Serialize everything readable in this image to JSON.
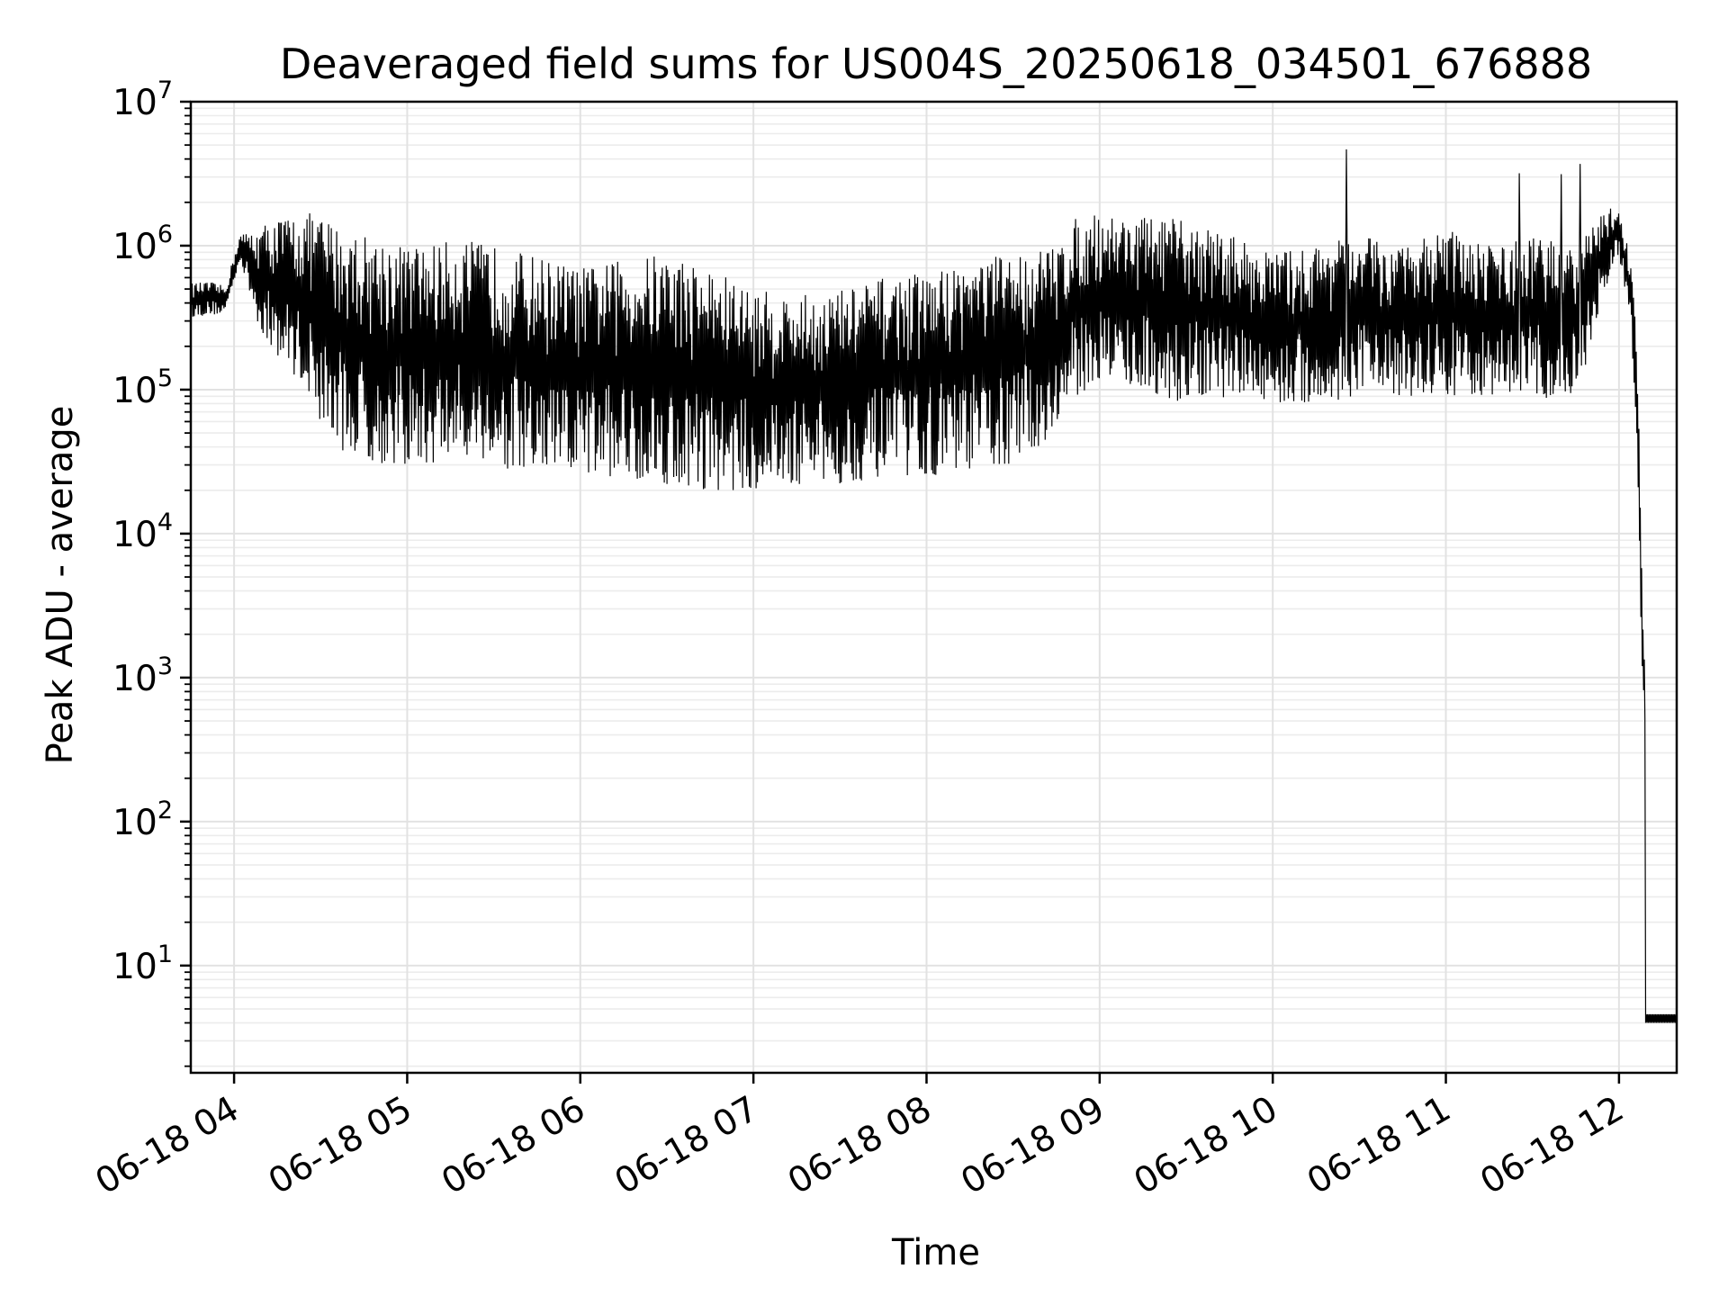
{
  "chart_data": {
    "type": "line",
    "title": "Deaveraged field sums for US004S_20250618_034501_676888",
    "xlabel": "Time",
    "ylabel": "Peak ADU - average",
    "yscale": "log",
    "ylim": [
      1.8,
      10000000
    ],
    "xlim": [
      "2025-06-18 03:45",
      "2025-06-18 12:20"
    ],
    "grid": true,
    "grid_minor": true,
    "x_tick_labels": [
      "06-18 04",
      "06-18 05",
      "06-18 06",
      "06-18 07",
      "06-18 08",
      "06-18 09",
      "06-18 10",
      "06-18 11",
      "06-18 12"
    ],
    "x_tick_times": [
      "2025-06-18 04:00",
      "2025-06-18 05:00",
      "2025-06-18 06:00",
      "2025-06-18 07:00",
      "2025-06-18 08:00",
      "2025-06-18 09:00",
      "2025-06-18 10:00",
      "2025-06-18 11:00",
      "2025-06-18 12:00"
    ],
    "y_ticks": [
      {
        "base": "10",
        "exp": "1",
        "value": 10
      },
      {
        "base": "10",
        "exp": "2",
        "value": 100
      },
      {
        "base": "10",
        "exp": "3",
        "value": 1000
      },
      {
        "base": "10",
        "exp": "4",
        "value": 10000
      },
      {
        "base": "10",
        "exp": "5",
        "value": 100000
      },
      {
        "base": "10",
        "exp": "6",
        "value": 1000000
      },
      {
        "base": "10",
        "exp": "7",
        "value": 10000000
      }
    ],
    "series_color": "#000000",
    "series": [
      {
        "x": [
          "2025-06-18 03:45",
          "2025-06-18 03:52",
          "2025-06-18 03:57",
          "2025-06-18 04:02",
          "2025-06-18 04:08",
          "2025-06-18 04:12",
          "2025-06-18 04:18",
          "2025-06-18 04:25",
          "2025-06-18 04:30",
          "2025-06-18 04:36",
          "2025-06-18 04:40",
          "2025-06-18 04:45",
          "2025-06-18 04:50",
          "2025-06-18 04:55",
          "2025-06-18 05:00",
          "2025-06-18 05:10",
          "2025-06-18 05:20",
          "2025-06-18 05:30",
          "2025-06-18 05:40",
          "2025-06-18 05:50",
          "2025-06-18 06:00",
          "2025-06-18 06:15",
          "2025-06-18 06:30",
          "2025-06-18 06:45",
          "2025-06-18 07:00",
          "2025-06-18 07:15",
          "2025-06-18 07:30",
          "2025-06-18 07:45",
          "2025-06-18 08:00",
          "2025-06-18 08:15",
          "2025-06-18 08:30",
          "2025-06-18 08:45",
          "2025-06-18 08:50",
          "2025-06-18 08:55",
          "2025-06-18 09:00",
          "2025-06-18 09:15",
          "2025-06-18 09:30",
          "2025-06-18 09:45",
          "2025-06-18 10:00",
          "2025-06-18 10:15",
          "2025-06-18 10:30",
          "2025-06-18 10:45",
          "2025-06-18 11:00",
          "2025-06-18 11:15",
          "2025-06-18 11:30",
          "2025-06-18 11:45",
          "2025-06-18 11:55",
          "2025-06-18 12:00",
          "2025-06-18 12:04",
          "2025-06-18 12:06",
          "2025-06-18 12:07",
          "2025-06-18 12:08",
          "2025-06-18 12:09",
          "2025-06-18 12:10",
          "2025-06-18 12:15",
          "2025-06-18 12:20"
        ],
        "hi": [
          550000,
          560000,
          520000,
          1200000,
          1300000,
          1500000,
          1600000,
          1700000,
          1650000,
          1400000,
          1300000,
          1200000,
          1150000,
          1100000,
          1000000,
          1050000,
          1100000,
          1000000,
          900000,
          800000,
          700000,
          800000,
          900000,
          700000,
          500000,
          450000,
          500000,
          600000,
          650000,
          800000,
          900000,
          1000000,
          1500000,
          1600000,
          1700000,
          1600000,
          1500000,
          1200000,
          900000,
          1000000,
          1200000,
          1000000,
          1300000,
          1000000,
          1200000,
          1000000,
          1800000,
          1900000,
          800000,
          300000,
          50000,
          5000,
          1000,
          4,
          4,
          4
        ],
        "lo": [
          320000,
          330000,
          340000,
          800000,
          300000,
          200000,
          150000,
          100000,
          60000,
          40000,
          35000,
          35000,
          30000,
          30000,
          30000,
          30000,
          35000,
          30000,
          25000,
          25000,
          25000,
          25000,
          22000,
          20000,
          20000,
          22000,
          22000,
          25000,
          25000,
          28000,
          30000,
          50000,
          80000,
          100000,
          120000,
          100000,
          80000,
          90000,
          80000,
          80000,
          90000,
          90000,
          90000,
          90000,
          90000,
          80000,
          500000,
          800000,
          300000,
          60000,
          8000,
          1000,
          500,
          4,
          4,
          4
        ]
      }
    ]
  }
}
